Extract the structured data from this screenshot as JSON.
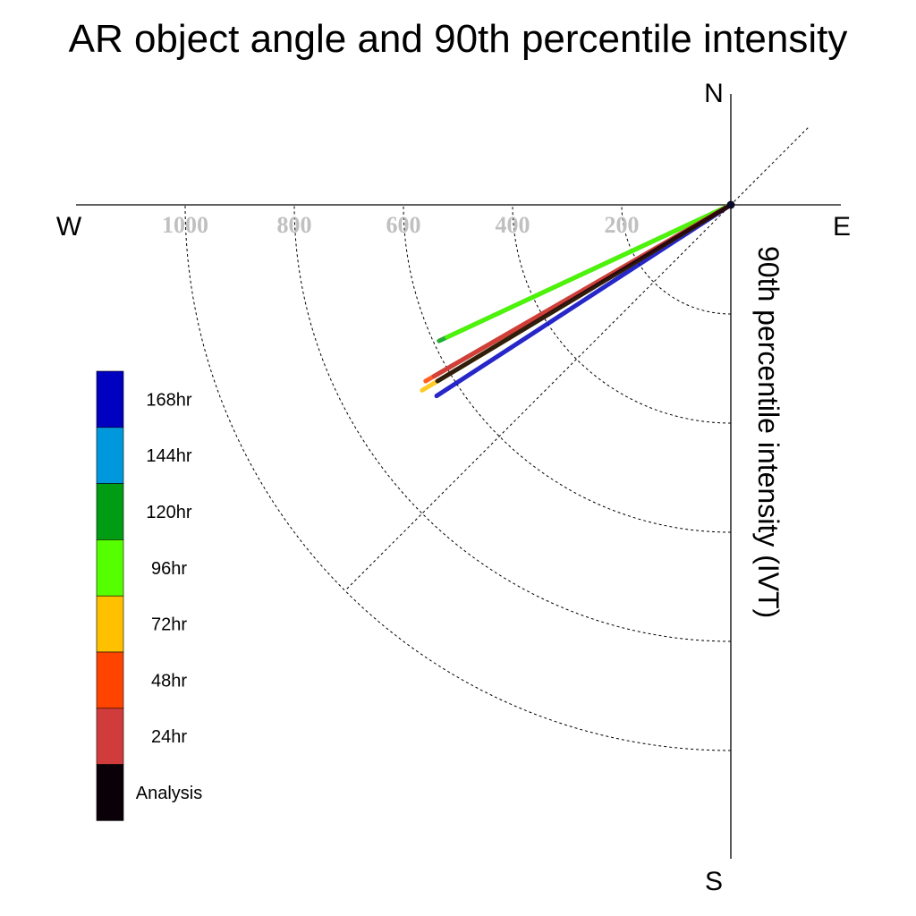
{
  "chart_data": {
    "type": "polar-vector",
    "title": "AR object angle and 90th percentile intensity",
    "ylabel": "90th percentile intensity (IVT)",
    "compass": {
      "north": "N",
      "south": "S",
      "east": "E",
      "west": "W"
    },
    "rings": [
      200,
      400,
      600,
      800,
      1000
    ],
    "ring_labels": [
      "200",
      "400",
      "600",
      "800",
      "1000"
    ],
    "guide_angle_deg": 225,
    "series": [
      {
        "name": "168hr",
        "color": "#0000c0",
        "intensity": 643,
        "angle_deg": 237
      },
      {
        "name": "144hr",
        "color": "#0098dc",
        "intensity": 618,
        "angle_deg": 240
      },
      {
        "name": "120hr",
        "color": "#009c14",
        "intensity": 590,
        "angle_deg": 245
      },
      {
        "name": "96hr",
        "color": "#55ff00",
        "intensity": 574,
        "angle_deg": 245
      },
      {
        "name": "72hr",
        "color": "#ffc000",
        "intensity": 660,
        "angle_deg": 239
      },
      {
        "name": "48hr",
        "color": "#ff4400",
        "intensity": 646,
        "angle_deg": 240
      },
      {
        "name": "24hr",
        "color": "#d03c3c",
        "intensity": 628,
        "angle_deg": 240
      },
      {
        "name": "Analysis",
        "color": "#0a0008",
        "intensity": 627,
        "angle_deg": 239
      }
    ],
    "legend": [
      {
        "label": "168hr",
        "color": "#0000c0"
      },
      {
        "label": "144hr",
        "color": "#0098dc"
      },
      {
        "label": "120hr",
        "color": "#009c14"
      },
      {
        "label": "96hr",
        "color": "#55ff00"
      },
      {
        "label": "72hr",
        "color": "#ffc000"
      },
      {
        "label": "48hr",
        "color": "#ff4400"
      },
      {
        "label": "24hr",
        "color": "#d03c3c"
      },
      {
        "label": "Analysis",
        "color": "#0a0008"
      }
    ]
  }
}
